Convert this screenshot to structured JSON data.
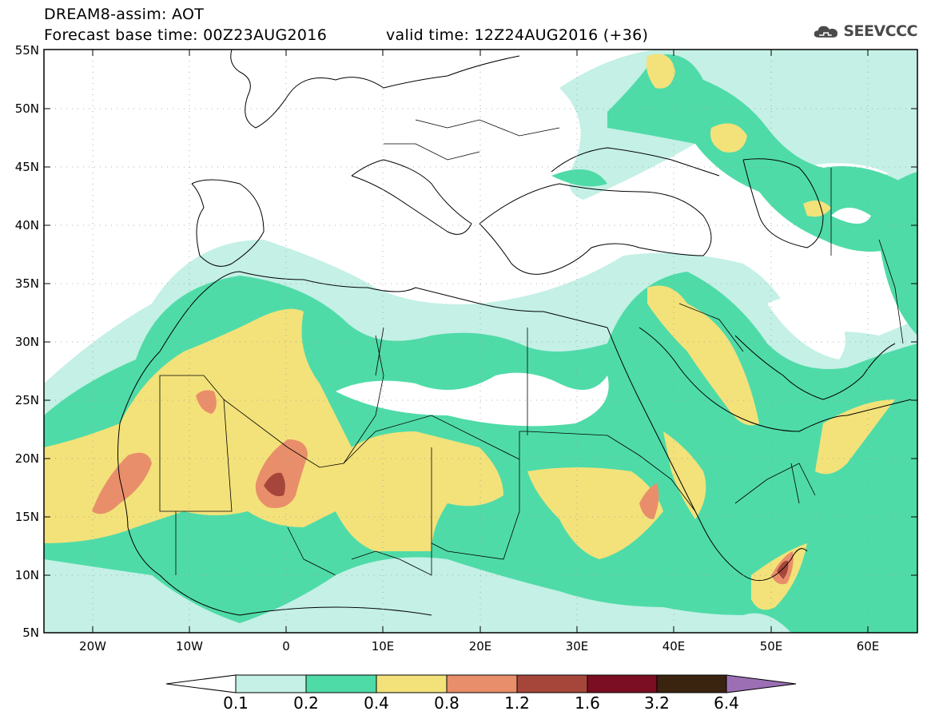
{
  "header": {
    "title_line1": "DREAM8-assim: AOT",
    "title_line2": "Forecast base time: 00Z23AUG2016",
    "valid_time": "valid time: 12Z24AUG2016 (+36)",
    "logo_text": "SEEVCCC",
    "logo_icon": "cloud-icon"
  },
  "map": {
    "extent": {
      "lon": [
        -25,
        65
      ],
      "lat": [
        5,
        55
      ]
    },
    "lat_labels": [
      "55N",
      "50N",
      "45N",
      "40N",
      "35N",
      "30N",
      "25N",
      "20N",
      "15N",
      "10N",
      "5N"
    ],
    "lon_labels": [
      "20W",
      "10W",
      "0",
      "10E",
      "20E",
      "30E",
      "40E",
      "50E",
      "60E"
    ],
    "grid": "dotted"
  },
  "legend": {
    "labels": [
      "0.1",
      "0.2",
      "0.4",
      "0.8",
      "1.2",
      "1.6",
      "3.2",
      "6.4"
    ],
    "colors": [
      "#ffffff",
      "#c4f0e6",
      "#4fdba8",
      "#f3e27a",
      "#e98e6a",
      "#a6463b",
      "#7b0e22",
      "#3a2410",
      "#9c6fb4"
    ]
  }
}
